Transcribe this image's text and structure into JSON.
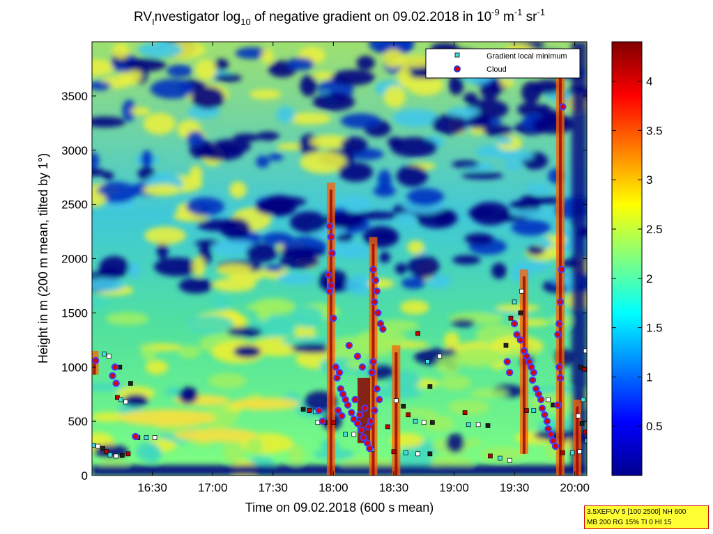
{
  "chart_data": {
    "type": "heatmap",
    "title": {
      "prefix": "RV",
      "prefix_sub": "I",
      "part1": "nvestigator log",
      "log_base": "10",
      "part2": " of negative gradient on 09.02.2018 in 10",
      "exp1": "-9",
      "unit1": " m",
      "exp2": "-1",
      "unit2": " sr",
      "exp3": "-1"
    },
    "xlabel": "Time on 09.02.2018 (600 s mean)",
    "ylabel": "Height in m (200 m mean, tilted by 1°)",
    "x_ticks": [
      "16:30",
      "17:00",
      "17:30",
      "18:00",
      "18:30",
      "19:00",
      "19:30",
      "20:00"
    ],
    "x_tick_hours": [
      16.5,
      17.0,
      17.5,
      18.0,
      18.5,
      19.0,
      19.5,
      20.0
    ],
    "xlim_hours": [
      16.0,
      20.1
    ],
    "y_ticks": [
      "0",
      "500",
      "1000",
      "1500",
      "2000",
      "2500",
      "3000",
      "3500"
    ],
    "ylim": [
      0,
      4000
    ],
    "colorbar": {
      "ticks": [
        "0.5",
        "1",
        "1.5",
        "2",
        "2.5",
        "3",
        "3.5",
        "4"
      ],
      "range": [
        0,
        4.4
      ],
      "colormap": [
        "#00008f",
        "#0000ff",
        "#0080ff",
        "#00ffff",
        "#80ff80",
        "#ffff00",
        "#ff8000",
        "#ff0000",
        "#800000"
      ]
    },
    "legend": {
      "placement": "top-right",
      "entries": [
        {
          "label": "Gradient local minimum",
          "marker": "square",
          "color": "#40e0e0"
        },
        {
          "label": "Cloud",
          "marker": "circle",
          "color": "#d00000",
          "edge": "#3030d0"
        }
      ]
    },
    "clouds": [
      {
        "t": 16.03,
        "h": 1060
      },
      {
        "t": 16.19,
        "h": 1000
      },
      {
        "t": 16.17,
        "h": 920
      },
      {
        "t": 16.2,
        "h": 850
      },
      {
        "t": 16.36,
        "h": 360
      },
      {
        "t": 17.88,
        "h": 600
      },
      {
        "t": 17.91,
        "h": 500
      },
      {
        "t": 17.97,
        "h": 2300
      },
      {
        "t": 17.98,
        "h": 2200
      },
      {
        "t": 17.99,
        "h": 2050
      },
      {
        "t": 17.96,
        "h": 1850
      },
      {
        "t": 17.98,
        "h": 1750
      },
      {
        "t": 17.97,
        "h": 1700
      },
      {
        "t": 18.0,
        "h": 1450
      },
      {
        "t": 18.02,
        "h": 1000
      },
      {
        "t": 18.05,
        "h": 950
      },
      {
        "t": 18.03,
        "h": 900
      },
      {
        "t": 18.06,
        "h": 800
      },
      {
        "t": 18.08,
        "h": 750
      },
      {
        "t": 18.1,
        "h": 700
      },
      {
        "t": 18.12,
        "h": 650
      },
      {
        "t": 18.15,
        "h": 580
      },
      {
        "t": 18.17,
        "h": 520
      },
      {
        "t": 18.04,
        "h": 600
      },
      {
        "t": 18.07,
        "h": 550
      },
      {
        "t": 18.2,
        "h": 480
      },
      {
        "t": 18.23,
        "h": 420
      },
      {
        "t": 18.25,
        "h": 350
      },
      {
        "t": 18.28,
        "h": 300
      },
      {
        "t": 18.3,
        "h": 250
      },
      {
        "t": 18.22,
        "h": 560
      },
      {
        "t": 18.26,
        "h": 620
      },
      {
        "t": 18.18,
        "h": 700
      },
      {
        "t": 18.13,
        "h": 1200
      },
      {
        "t": 18.2,
        "h": 1100
      },
      {
        "t": 18.24,
        "h": 1000
      },
      {
        "t": 18.33,
        "h": 1900
      },
      {
        "t": 18.35,
        "h": 1800
      },
      {
        "t": 18.36,
        "h": 1700
      },
      {
        "t": 18.34,
        "h": 1600
      },
      {
        "t": 18.37,
        "h": 1500
      },
      {
        "t": 18.39,
        "h": 1400
      },
      {
        "t": 18.41,
        "h": 1350
      },
      {
        "t": 18.33,
        "h": 1050
      },
      {
        "t": 18.32,
        "h": 950
      },
      {
        "t": 18.36,
        "h": 800
      },
      {
        "t": 18.38,
        "h": 700
      },
      {
        "t": 18.34,
        "h": 600
      },
      {
        "t": 18.31,
        "h": 500
      },
      {
        "t": 18.29,
        "h": 450
      },
      {
        "t": 19.44,
        "h": 1050
      },
      {
        "t": 19.46,
        "h": 950
      },
      {
        "t": 19.5,
        "h": 1400
      },
      {
        "t": 19.52,
        "h": 1300
      },
      {
        "t": 19.55,
        "h": 1250
      },
      {
        "t": 19.58,
        "h": 1150
      },
      {
        "t": 19.6,
        "h": 1100
      },
      {
        "t": 19.62,
        "h": 1050
      },
      {
        "t": 19.64,
        "h": 1000
      },
      {
        "t": 19.66,
        "h": 950
      },
      {
        "t": 19.65,
        "h": 880
      },
      {
        "t": 19.68,
        "h": 800
      },
      {
        "t": 19.7,
        "h": 750
      },
      {
        "t": 19.72,
        "h": 700
      },
      {
        "t": 19.73,
        "h": 620
      },
      {
        "t": 19.75,
        "h": 560
      },
      {
        "t": 19.77,
        "h": 500
      },
      {
        "t": 19.78,
        "h": 430
      },
      {
        "t": 19.8,
        "h": 380
      },
      {
        "t": 19.82,
        "h": 320
      },
      {
        "t": 19.84,
        "h": 270
      },
      {
        "t": 19.86,
        "h": 650
      },
      {
        "t": 19.88,
        "h": 900
      },
      {
        "t": 19.87,
        "h": 1000
      },
      {
        "t": 19.86,
        "h": 1300
      },
      {
        "t": 19.87,
        "h": 1400
      },
      {
        "t": 19.88,
        "h": 1600
      },
      {
        "t": 19.89,
        "h": 1900
      },
      {
        "t": 19.9,
        "h": 3400
      }
    ],
    "minima": [
      {
        "t": 16.01,
        "h": 280
      },
      {
        "t": 16.05,
        "h": 270
      },
      {
        "t": 16.09,
        "h": 250
      },
      {
        "t": 16.12,
        "h": 220
      },
      {
        "t": 16.15,
        "h": 190
      },
      {
        "t": 16.2,
        "h": 180
      },
      {
        "t": 16.25,
        "h": 185
      },
      {
        "t": 16.3,
        "h": 200
      },
      {
        "t": 16.1,
        "h": 1120
      },
      {
        "t": 16.14,
        "h": 1100
      },
      {
        "t": 16.23,
        "h": 1000
      },
      {
        "t": 16.21,
        "h": 720
      },
      {
        "t": 16.24,
        "h": 700
      },
      {
        "t": 16.28,
        "h": 680
      },
      {
        "t": 16.32,
        "h": 850
      },
      {
        "t": 16.38,
        "h": 350
      },
      {
        "t": 16.45,
        "h": 350
      },
      {
        "t": 16.52,
        "h": 350
      },
      {
        "t": 17.75,
        "h": 610
      },
      {
        "t": 17.8,
        "h": 600
      },
      {
        "t": 17.85,
        "h": 590
      },
      {
        "t": 17.87,
        "h": 490
      },
      {
        "t": 17.93,
        "h": 490
      },
      {
        "t": 18.0,
        "h": 490
      },
      {
        "t": 18.1,
        "h": 380
      },
      {
        "t": 18.17,
        "h": 380
      },
      {
        "t": 18.28,
        "h": 450
      },
      {
        "t": 18.45,
        "h": 450
      },
      {
        "t": 18.32,
        "h": 240
      },
      {
        "t": 18.52,
        "h": 690
      },
      {
        "t": 18.58,
        "h": 640
      },
      {
        "t": 18.62,
        "h": 560
      },
      {
        "t": 18.68,
        "h": 500
      },
      {
        "t": 18.75,
        "h": 490
      },
      {
        "t": 18.82,
        "h": 490
      },
      {
        "t": 18.5,
        "h": 220
      },
      {
        "t": 18.6,
        "h": 210
      },
      {
        "t": 18.7,
        "h": 200
      },
      {
        "t": 18.8,
        "h": 200
      },
      {
        "t": 18.7,
        "h": 1310
      },
      {
        "t": 18.78,
        "h": 1050
      },
      {
        "t": 18.88,
        "h": 1100
      },
      {
        "t": 18.8,
        "h": 820
      },
      {
        "t": 19.09,
        "h": 580
      },
      {
        "t": 19.12,
        "h": 470
      },
      {
        "t": 19.2,
        "h": 470
      },
      {
        "t": 19.28,
        "h": 460
      },
      {
        "t": 19.3,
        "h": 180
      },
      {
        "t": 19.38,
        "h": 160
      },
      {
        "t": 19.46,
        "h": 140
      },
      {
        "t": 19.43,
        "h": 1200
      },
      {
        "t": 19.47,
        "h": 1450
      },
      {
        "t": 19.5,
        "h": 1600
      },
      {
        "t": 19.56,
        "h": 1700
      },
      {
        "t": 19.55,
        "h": 1500
      },
      {
        "t": 19.6,
        "h": 600
      },
      {
        "t": 19.66,
        "h": 600
      },
      {
        "t": 19.78,
        "h": 700
      },
      {
        "t": 19.82,
        "h": 650
      },
      {
        "t": 19.9,
        "h": 210
      },
      {
        "t": 19.98,
        "h": 210
      },
      {
        "t": 20.04,
        "h": 220
      },
      {
        "t": 20.05,
        "h": 1000
      },
      {
        "t": 20.08,
        "h": 980
      },
      {
        "t": 20.07,
        "h": 700
      },
      {
        "t": 20.03,
        "h": 550
      },
      {
        "t": 20.06,
        "h": 480
      },
      {
        "t": 20.09,
        "h": 400
      },
      {
        "t": 20.1,
        "h": 320
      },
      {
        "t": 20.09,
        "h": 1150
      }
    ]
  },
  "info_box": {
    "line1": "3.5XEFUV 5 [100 2500] NH 600",
    "line2": "MB 200 RG 15% TI 0 HI 15"
  }
}
